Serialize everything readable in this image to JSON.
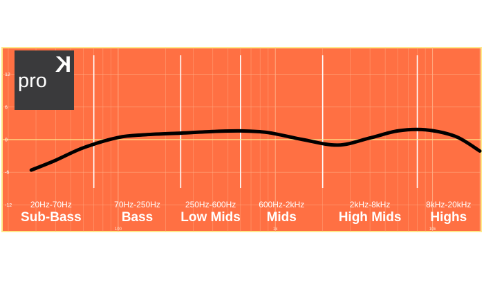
{
  "logo": {
    "text": "pro",
    "mark": "K",
    "background": "#3a3a3c"
  },
  "colors": {
    "plot_background": "#ff7043",
    "plot_border": "#ffe98a",
    "zero_line": "#ffe98a",
    "grid_minor": "#ffb088",
    "band_divider": "#ffffff",
    "curve": "#000000",
    "page_background": "#ffffff"
  },
  "chart_data": {
    "type": "line",
    "title": "",
    "xlabel": "",
    "ylabel": "",
    "x_scale": "log",
    "xlim": [
      20,
      20000
    ],
    "ylim": [
      -15,
      15
    ],
    "grid": true,
    "y_ticks": [
      "12",
      "6",
      "0",
      "-6",
      "-12"
    ],
    "x_ticks": [
      "100",
      "1k",
      "10k"
    ],
    "bands": [
      {
        "name": "Sub-Bass",
        "range": "20Hz-70Hz"
      },
      {
        "name": "Bass",
        "range": "70Hz-250Hz"
      },
      {
        "name": "Low Mids",
        "range": "250Hz-600Hz"
      },
      {
        "name": "Mids",
        "range": "600Hz-2kHz"
      },
      {
        "name": "High Mids",
        "range": "2kHz-8kHz"
      },
      {
        "name": "Highs",
        "range": "8kHz-20kHz"
      }
    ],
    "band_edges_hz": [
      70,
      250,
      600,
      2000,
      8000
    ],
    "series": [
      {
        "x": [
          28,
          40,
          60,
          100,
          150,
          250,
          400,
          600,
          900,
          1500,
          2500,
          4000,
          6000,
          9000,
          14000,
          20000
        ],
        "y": [
          -5.6,
          -3.8,
          -1.5,
          0.4,
          0.9,
          1.2,
          1.5,
          1.6,
          1.3,
          0.0,
          -1.0,
          0.3,
          1.6,
          1.8,
          0.6,
          -2.1
        ]
      }
    ]
  }
}
